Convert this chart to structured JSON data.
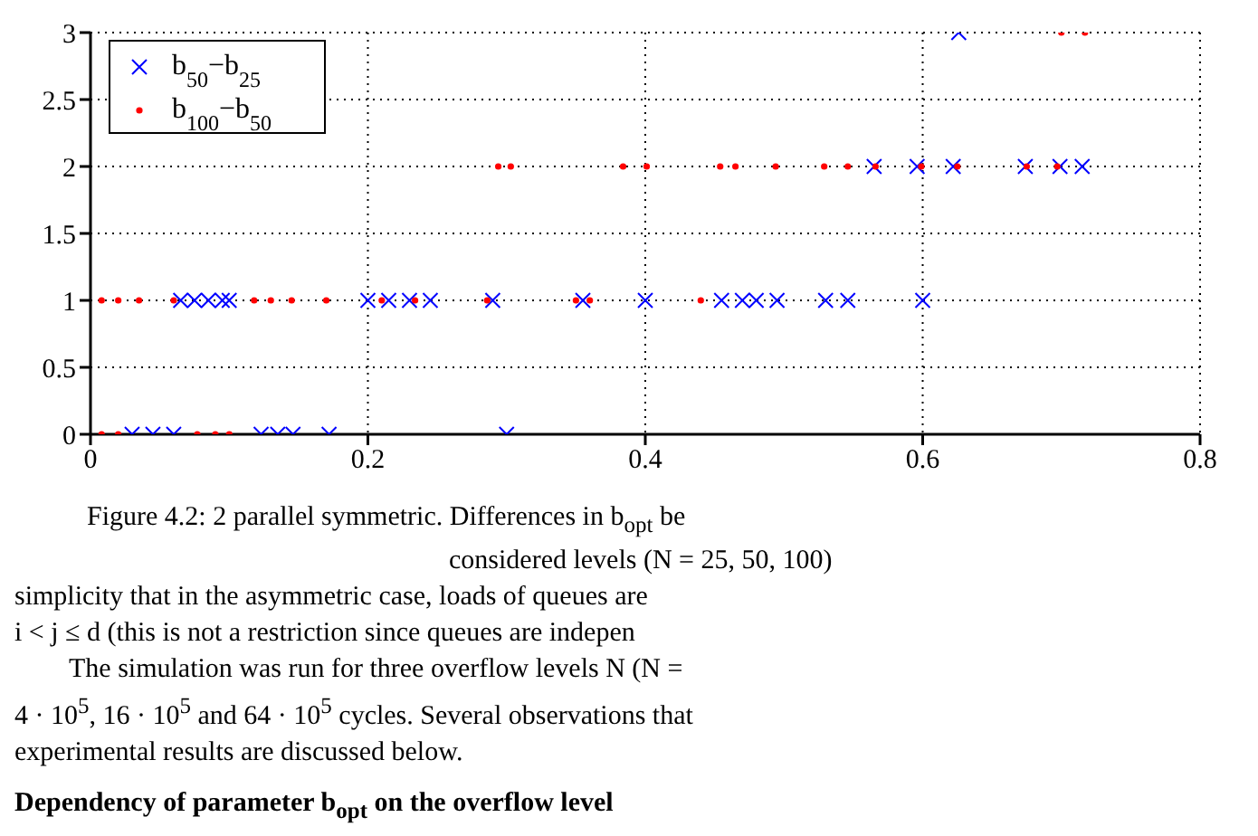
{
  "chart_data": {
    "type": "scatter",
    "series": [
      {
        "name": "b$_{50}$−b$_{25}$",
        "color": "#0000ff",
        "marker": "cross",
        "x": [
          0.626,
          0.565,
          0.596,
          0.622,
          0.674,
          0.699,
          0.715,
          0.065,
          0.075,
          0.085,
          0.095,
          0.1,
          0.2,
          0.215,
          0.23,
          0.245,
          0.29,
          0.355,
          0.4,
          0.455,
          0.47,
          0.48,
          0.495,
          0.53,
          0.546,
          0.6,
          0.03,
          0.045,
          0.06,
          0.123,
          0.135,
          0.146,
          0.172,
          0.3
        ],
        "values": [
          3,
          2,
          2,
          2,
          2,
          2,
          2,
          1,
          1,
          1,
          1,
          1,
          1,
          1,
          1,
          1,
          1,
          1,
          1,
          1,
          1,
          1,
          1,
          1,
          1,
          1,
          0,
          0,
          0,
          0,
          0,
          0,
          0,
          0
        ]
      },
      {
        "name": "b$_{100}$−b$_{50}$",
        "color": "#ff0000",
        "marker": "circle",
        "x": [
          0.7,
          0.717,
          0.294,
          0.303,
          0.384,
          0.401,
          0.454,
          0.465,
          0.494,
          0.529,
          0.546,
          0.566,
          0.599,
          0.625,
          0.675,
          0.697,
          0.008,
          0.02,
          0.035,
          0.06,
          0.118,
          0.13,
          0.145,
          0.17,
          0.21,
          0.234,
          0.286,
          0.35,
          0.36,
          0.44,
          0.008,
          0.02,
          0.077,
          0.09,
          0.1
        ],
        "values": [
          3,
          3,
          2,
          2,
          2,
          2,
          2,
          2,
          2,
          2,
          2,
          2,
          2,
          2,
          2,
          2,
          1,
          1,
          1,
          1,
          1,
          1,
          1,
          1,
          1,
          1,
          1,
          1,
          1,
          1,
          0,
          0,
          0,
          0,
          0
        ]
      }
    ],
    "xlim": [
      0,
      0.8
    ],
    "xticks": [
      0,
      0.2,
      0.4,
      0.6,
      0.8
    ],
    "ylim": [
      0,
      3
    ],
    "yticks": [
      0,
      0.5,
      1,
      1.5,
      2,
      2.5,
      3
    ],
    "grid": true,
    "legend": "top left",
    "annotations": [
      "Figure 4.2: 2 parallel symmetric. Differences in b$_{opt}$ be",
      "considered levels (N = 25, 50, 100)",
      "simplicity that in the asymmetric case, loads of queues are",
      "i < j ≤ d (this is not a restriction since queues are indepen",
      "The simulation was run for three overflow levels N (N =",
      "4 · 10$^{5}$, 16 · 10$^{5}$ and 64 · 10$^{5}$ cycles. Several observations that",
      "experimental results are discussed below.",
      "Dependency of parameter b$_{opt}$ on the overflow level"
    ]
  }
}
